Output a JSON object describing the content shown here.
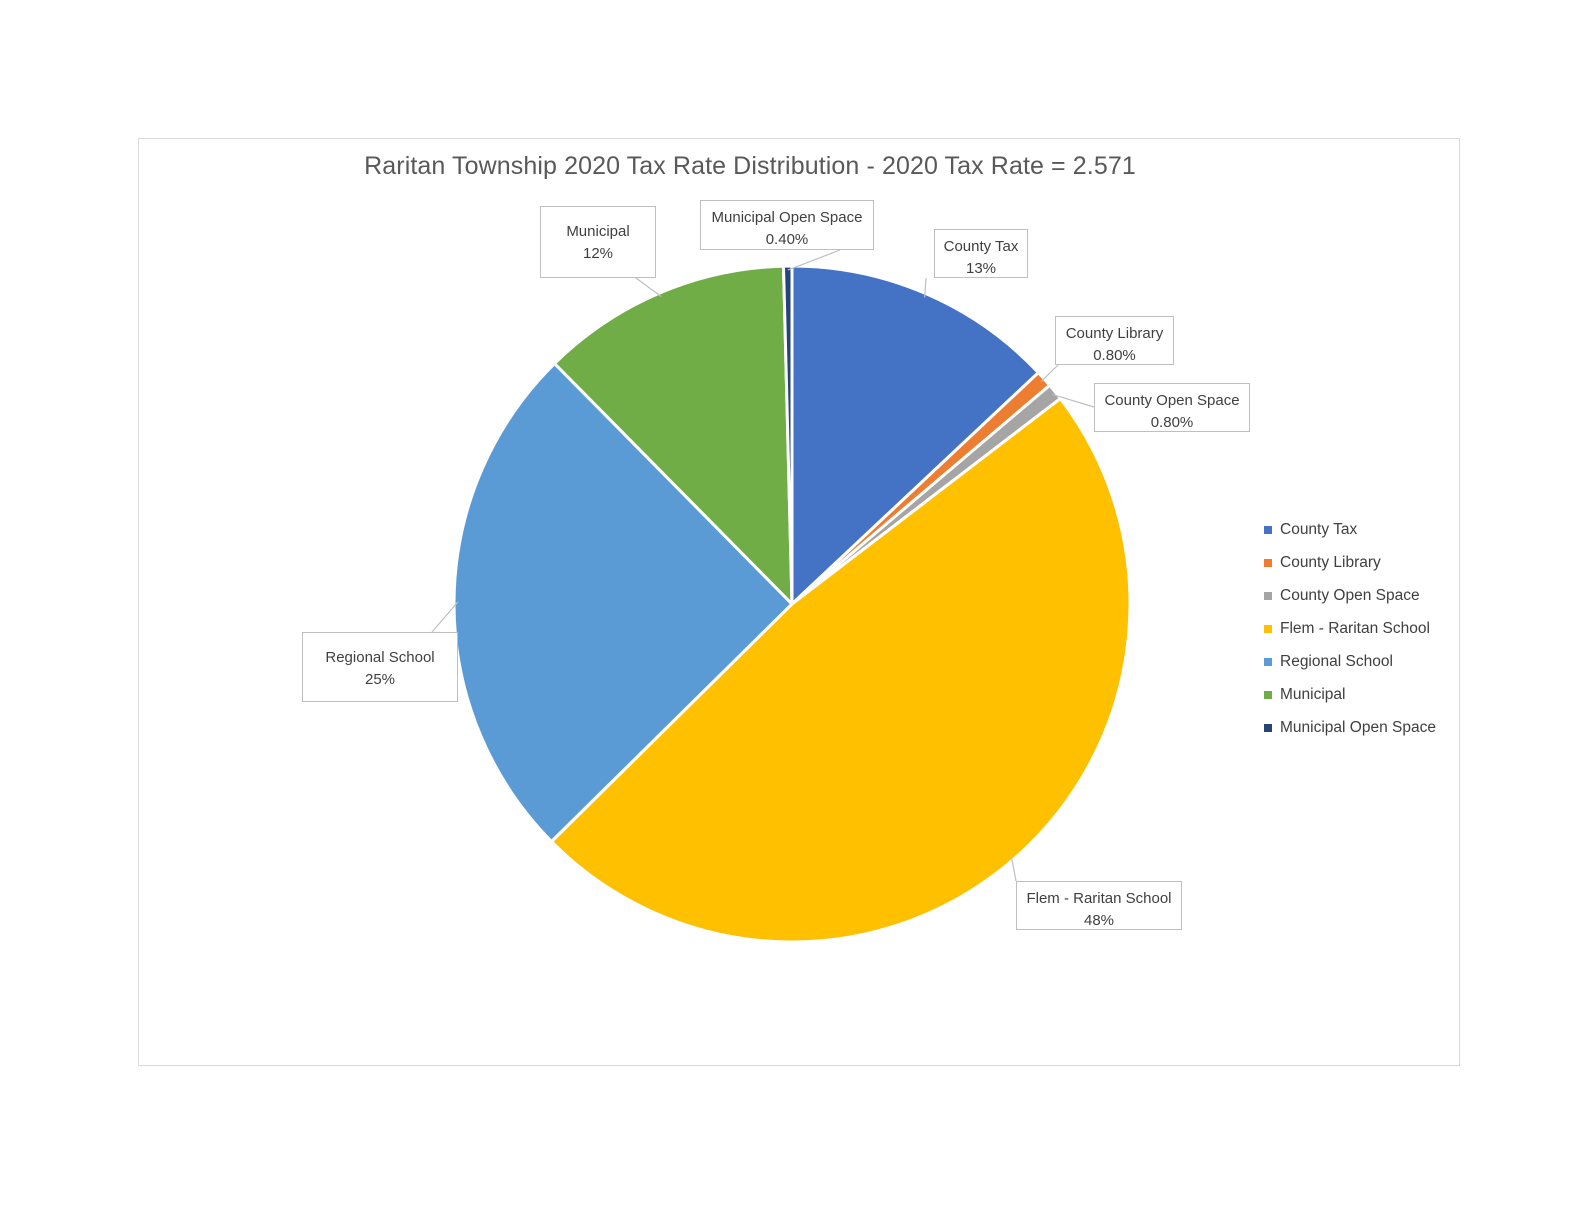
{
  "chart_data": {
    "type": "pie",
    "title": "Raritan Township 2020 Tax Rate Distribution - 2020 Tax Rate = 2.571",
    "slices": [
      {
        "name": "County Tax",
        "value": 13,
        "label": "13%",
        "color": "#4472c4"
      },
      {
        "name": "County Library",
        "value": 0.8,
        "label": "0.80%",
        "color": "#ed7d31"
      },
      {
        "name": "County Open Space",
        "value": 0.8,
        "label": "0.80%",
        "color": "#a5a5a5"
      },
      {
        "name": "Flem - Raritan School",
        "value": 48,
        "label": "48%",
        "color": "#ffc000"
      },
      {
        "name": "Regional School",
        "value": 25,
        "label": "25%",
        "color": "#5b9bd5"
      },
      {
        "name": "Municipal",
        "value": 12,
        "label": "12%",
        "color": "#70ad47"
      },
      {
        "name": "Municipal Open Space",
        "value": 0.4,
        "label": "0.40%",
        "color": "#264478"
      }
    ],
    "legend_position": "right"
  }
}
